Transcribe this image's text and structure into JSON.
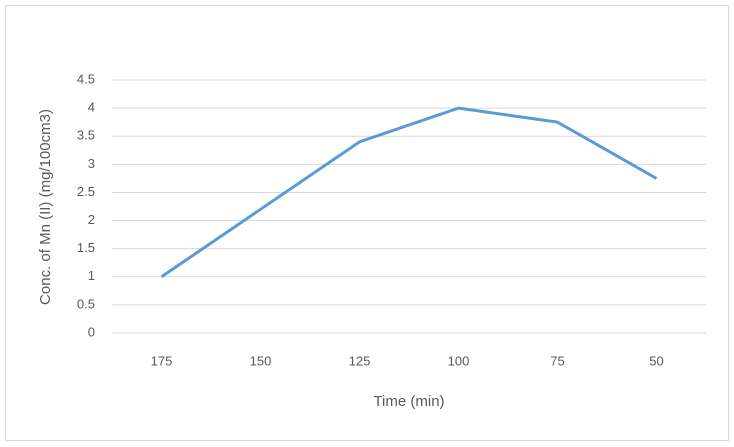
{
  "chart_data": {
    "type": "line",
    "x_label": "Time (min)",
    "y_label": "Conc. of Mn (II) (mg/100cm3)",
    "categories": [
      "175",
      "150",
      "125",
      "100",
      "75",
      "50"
    ],
    "series": [
      {
        "color": "#5b9bd5",
        "values": [
          1,
          2.2,
          3.4,
          4.0,
          3.75,
          2.75
        ]
      }
    ],
    "ylim": [
      0,
      4.5
    ],
    "yticks": [
      0,
      0.5,
      1,
      1.5,
      2,
      2.5,
      3,
      3.5,
      4,
      4.5
    ],
    "grid": true
  }
}
